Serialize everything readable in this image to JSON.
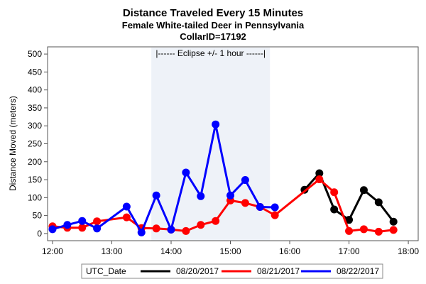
{
  "chart_data": {
    "type": "line",
    "title": "Distance Traveled Every 15 Minutes",
    "subtitle_1": "Female White-tailed Deer in Pennsylvania",
    "subtitle_2": "CollarID=17192",
    "xlabel": "",
    "ylabel": "Distance Moved (meters)",
    "xlim": [
      "11:55",
      "18:10"
    ],
    "ylim": [
      -20,
      520
    ],
    "x_ticks": [
      "12:00",
      "13:00",
      "14:00",
      "15:00",
      "16:00",
      "17:00",
      "18:00"
    ],
    "y_ticks": [
      0,
      50,
      100,
      150,
      200,
      250,
      300,
      350,
      400,
      450,
      500
    ],
    "grid": false,
    "band": {
      "x_start": "13:40",
      "x_end": "15:40",
      "color": "#eef2f8",
      "label": "|------  Eclipse +/- 1 hour  ------|"
    },
    "legend": {
      "title": "UTC_Date",
      "placement": "bottom"
    },
    "series": [
      {
        "name": "08/20/2017",
        "color": "#000000",
        "points": [
          [
            "16:15",
            122
          ],
          [
            "16:30",
            168
          ],
          [
            "16:45",
            67
          ],
          [
            "17:00",
            38
          ],
          [
            "17:15",
            121
          ],
          [
            "17:30",
            87
          ],
          [
            "17:45",
            33
          ]
        ]
      },
      {
        "name": "08/21/2017",
        "color": "#ff0000",
        "points": [
          [
            "12:00",
            20
          ],
          [
            "12:15",
            16
          ],
          [
            "12:30",
            16
          ],
          [
            "12:45",
            34
          ],
          [
            "13:15",
            45
          ],
          [
            "13:30",
            15
          ],
          [
            "13:45",
            14
          ],
          [
            "14:00",
            11
          ],
          [
            "14:15",
            7
          ],
          [
            "14:30",
            24
          ],
          [
            "14:45",
            35
          ],
          [
            "15:00",
            92
          ],
          [
            "15:15",
            85
          ],
          [
            "15:30",
            74
          ],
          [
            "15:45",
            51
          ],
          [
            "16:30",
            151
          ],
          [
            "16:45",
            115
          ],
          [
            "17:00",
            7
          ],
          [
            "17:15",
            12
          ],
          [
            "17:30",
            5
          ],
          [
            "17:45",
            10
          ]
        ]
      },
      {
        "name": "08/22/2017",
        "color": "#0000ff",
        "points": [
          [
            "12:00",
            12
          ],
          [
            "12:15",
            24
          ],
          [
            "12:30",
            35
          ],
          [
            "12:45",
            14
          ],
          [
            "13:15",
            75
          ],
          [
            "13:30",
            3
          ],
          [
            "13:45",
            106
          ],
          [
            "14:00",
            11
          ],
          [
            "14:15",
            170
          ],
          [
            "14:30",
            104
          ],
          [
            "14:45",
            304
          ],
          [
            "15:00",
            106
          ],
          [
            "15:15",
            149
          ],
          [
            "15:30",
            74
          ],
          [
            "15:45",
            73
          ]
        ]
      }
    ]
  }
}
